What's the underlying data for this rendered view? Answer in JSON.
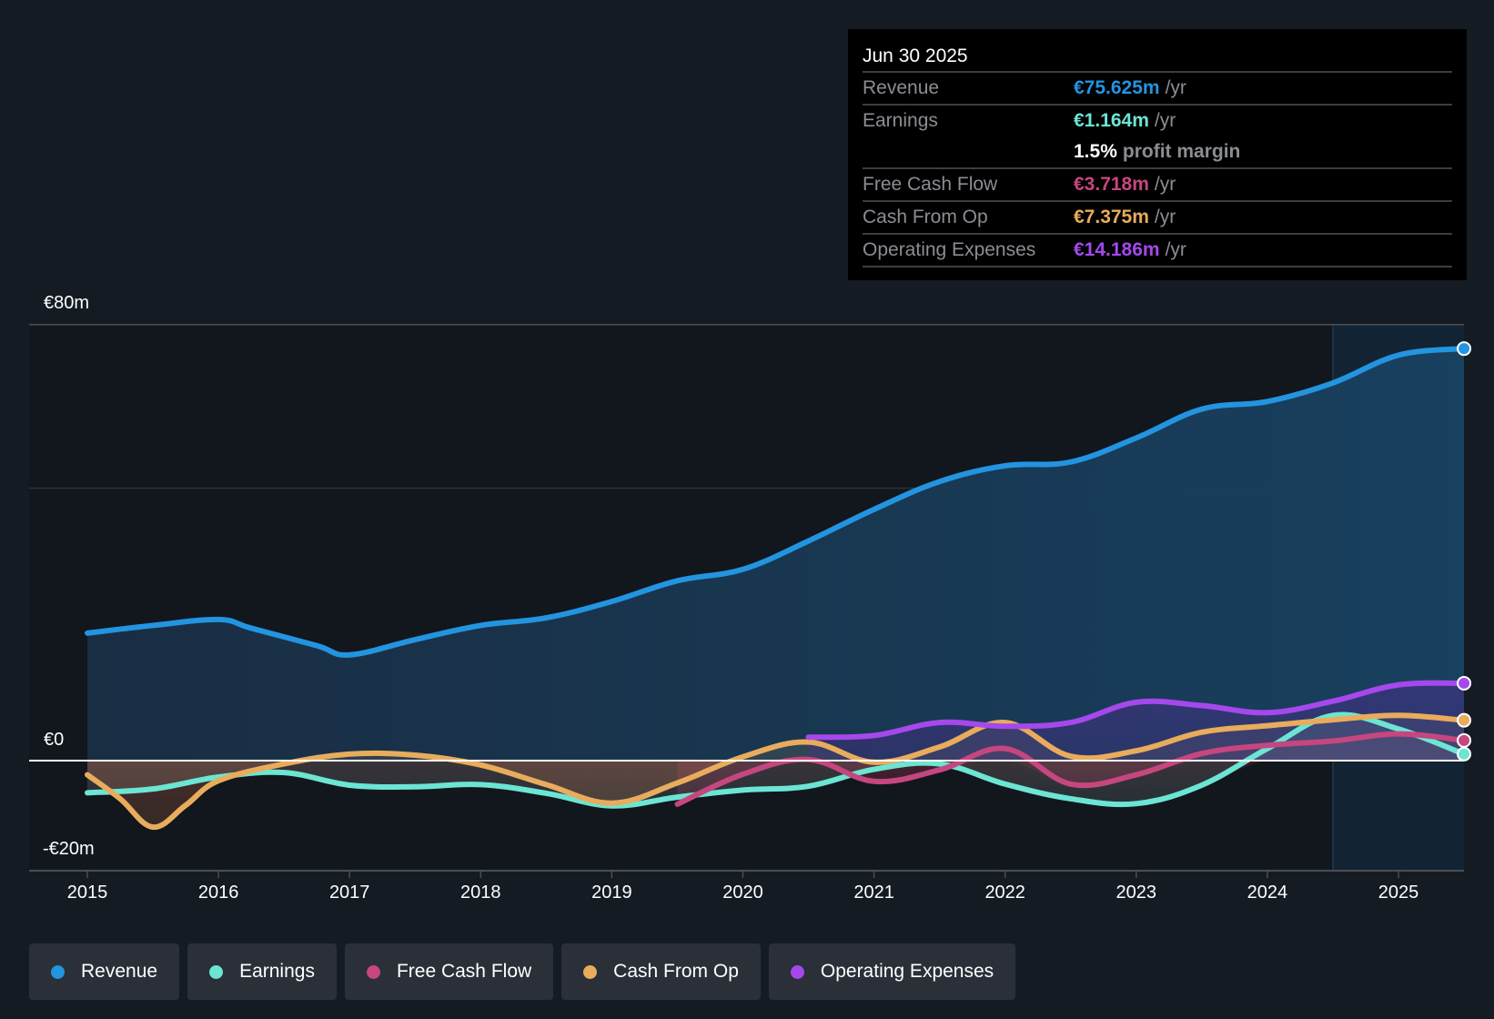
{
  "tooltip": {
    "date": "Jun 30 2025",
    "rows": [
      {
        "label": "Revenue",
        "value": "€75.625m",
        "unit": "/yr",
        "color": "#2394e0"
      },
      {
        "label": "Earnings",
        "value": "€1.164m",
        "unit": "/yr",
        "color": "#6ce5d3"
      },
      {
        "label": "",
        "value": "1.5%",
        "unit": "profit margin",
        "color": "#ffffff"
      },
      {
        "label": "Free Cash Flow",
        "value": "€3.718m",
        "unit": "/yr",
        "color": "#c6467f"
      },
      {
        "label": "Cash From Op",
        "value": "€7.375m",
        "unit": "/yr",
        "color": "#e8ac5c"
      },
      {
        "label": "Operating Expenses",
        "value": "€14.186m",
        "unit": "/yr",
        "color": "#a548ec"
      }
    ]
  },
  "legend": [
    {
      "label": "Revenue",
      "color": "#2394e0"
    },
    {
      "label": "Earnings",
      "color": "#6ce5d3"
    },
    {
      "label": "Free Cash Flow",
      "color": "#c6467f"
    },
    {
      "label": "Cash From Op",
      "color": "#e8ac5c"
    },
    {
      "label": "Operating Expenses",
      "color": "#a548ec"
    }
  ],
  "chart_data": {
    "type": "line",
    "title": "",
    "xlabel": "",
    "ylabel": "",
    "ylim": [
      -20,
      80
    ],
    "xlim": [
      2014.55,
      2025.5
    ],
    "y_tick_labels": [
      {
        "value": 80,
        "label": "€80m"
      },
      {
        "value": 0,
        "label": "€0"
      },
      {
        "value": -20,
        "label": "-€20m"
      }
    ],
    "x_tick_labels": [
      "2015",
      "2016",
      "2017",
      "2018",
      "2019",
      "2020",
      "2021",
      "2022",
      "2023",
      "2024",
      "2025"
    ],
    "x_ticks": [
      2015,
      2016,
      2017,
      2018,
      2019,
      2020,
      2021,
      2022,
      2023,
      2024,
      2025
    ],
    "gridlines": [
      80,
      50,
      0
    ],
    "highlight_start": 2024.5,
    "legend_position": "bottom",
    "series": [
      {
        "name": "Revenue",
        "color": "#2394e0",
        "fill": true,
        "x": [
          2015,
          2015.5,
          2016,
          2016.25,
          2016.75,
          2017,
          2017.5,
          2018,
          2018.5,
          2019,
          2019.5,
          2020,
          2020.5,
          2021,
          2021.5,
          2022,
          2022.5,
          2023,
          2023.5,
          2024,
          2024.5,
          2025,
          2025.5
        ],
        "y": [
          23.4,
          24.8,
          25.9,
          24.3,
          21.1,
          19.4,
          22.2,
          24.8,
          26.2,
          29.2,
          33.0,
          35.1,
          40.3,
          46.1,
          51.2,
          54.1,
          54.8,
          59.2,
          64.5,
          65.9,
          69.3,
          74.4,
          75.6
        ]
      },
      {
        "name": "Earnings",
        "color": "#6ce5d3",
        "fill": false,
        "x": [
          2015,
          2015.5,
          2016,
          2016.5,
          2017,
          2017.5,
          2018,
          2018.5,
          2019,
          2019.5,
          2020,
          2020.5,
          2021,
          2021.5,
          2022,
          2022.5,
          2023,
          2023.5,
          2024,
          2024.5,
          2025,
          2025.5
        ],
        "y": [
          -5.9,
          -5.2,
          -3.0,
          -2.2,
          -4.5,
          -4.8,
          -4.4,
          -6.0,
          -8.3,
          -6.7,
          -5.4,
          -4.7,
          -1.6,
          -0.6,
          -4.3,
          -7.0,
          -7.9,
          -4.5,
          2.2,
          8.3,
          5.8,
          1.2
        ]
      },
      {
        "name": "Free Cash Flow",
        "color": "#c6467f",
        "fill": false,
        "x": [
          2019.5,
          2020,
          2020.5,
          2021,
          2021.5,
          2022,
          2022.5,
          2023,
          2023.5,
          2024,
          2024.5,
          2025,
          2025.5
        ],
        "y": [
          -8.0,
          -2.5,
          0.2,
          -3.8,
          -1.7,
          2.2,
          -4.3,
          -2.6,
          1.3,
          2.8,
          3.6,
          4.9,
          3.7
        ]
      },
      {
        "name": "Cash From Op",
        "color": "#e8ac5c",
        "fill": false,
        "x": [
          2015,
          2015.25,
          2015.5,
          2015.75,
          2016,
          2016.5,
          2017,
          2017.5,
          2018,
          2018.5,
          2019,
          2019.5,
          2020,
          2020.5,
          2021,
          2021.5,
          2022,
          2022.5,
          2023,
          2023.5,
          2024,
          2024.5,
          2025,
          2025.5
        ],
        "y": [
          -2.6,
          -7.0,
          -12.2,
          -8.2,
          -3.7,
          -0.6,
          1.2,
          1.0,
          -0.8,
          -4.4,
          -7.8,
          -4.1,
          0.7,
          3.4,
          -0.3,
          2.5,
          7.0,
          0.8,
          1.8,
          5.2,
          6.4,
          7.5,
          8.3,
          7.4
        ]
      },
      {
        "name": "Operating Expenses",
        "color": "#a548ec",
        "fill": true,
        "x": [
          2020.5,
          2021,
          2021.5,
          2022,
          2022.5,
          2023,
          2023.5,
          2024,
          2024.5,
          2025,
          2025.5
        ],
        "y": [
          4.3,
          4.6,
          7.0,
          6.3,
          7.0,
          10.7,
          10.1,
          8.8,
          10.9,
          13.9,
          14.2
        ]
      }
    ]
  }
}
